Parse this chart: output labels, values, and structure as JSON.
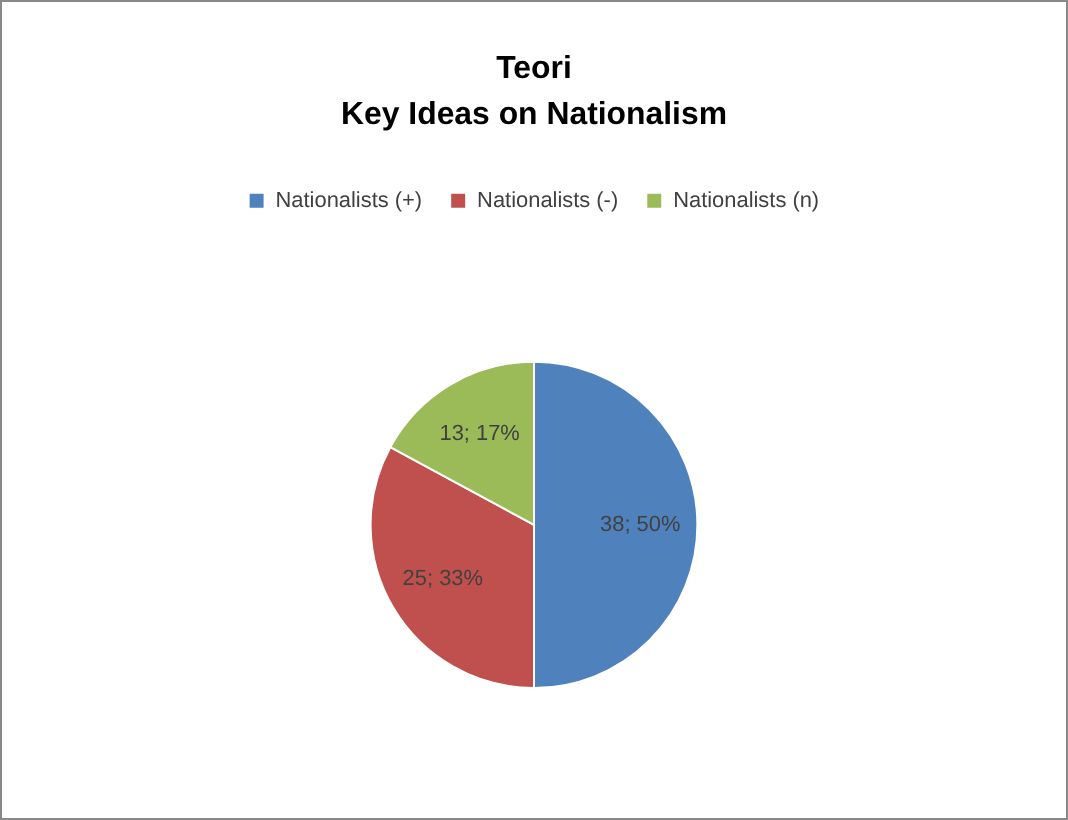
{
  "chart_data": {
    "type": "pie",
    "title": "Teori",
    "subtitle": "Key Ideas on Nationalism",
    "categories": [
      "Nationalists (+)",
      "Nationalists (-)",
      "Nationalists (n)"
    ],
    "values": [
      38,
      25,
      13
    ],
    "colors": [
      "#4f81bd",
      "#c0504d",
      "#9bbb59"
    ],
    "value_labels": [
      "38; 50%",
      "25; 33%",
      "13; 17%"
    ],
    "legend": "top"
  }
}
